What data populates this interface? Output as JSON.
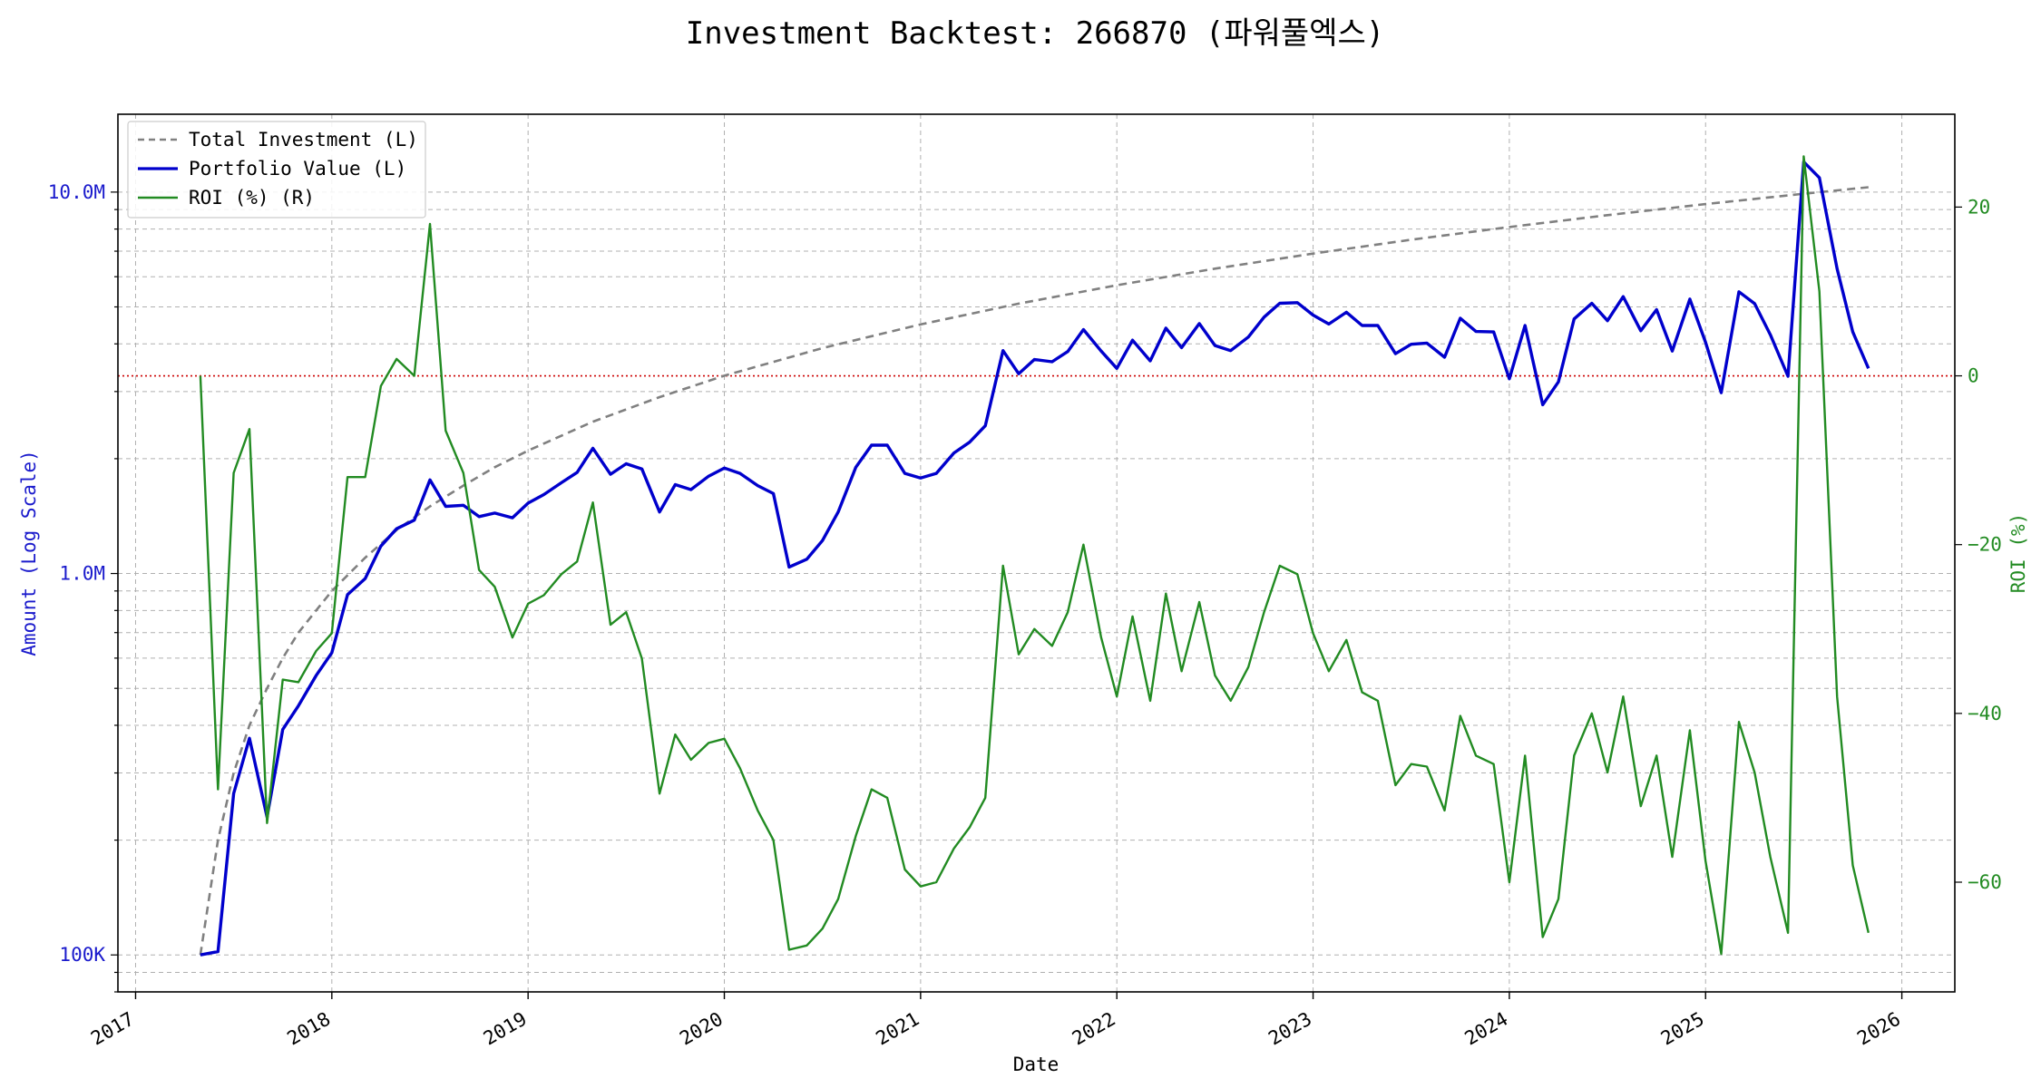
{
  "chart_data": {
    "type": "line",
    "title": "Investment Backtest: 266870 (파워풀엑스)",
    "xlabel": "Date",
    "ylabel_left": "Amount (Log Scale)",
    "ylabel_right": "ROI (%)",
    "x_range": [
      2016.91,
      2026.27
    ],
    "ylim_left": [
      80000,
      16000000
    ],
    "ylim_right": [
      -73,
      31
    ],
    "left_scale": "log",
    "grid": true,
    "legend_position": "top-left",
    "x_ticks": [
      {
        "value": 2017,
        "label": "2017"
      },
      {
        "value": 2018,
        "label": "2018"
      },
      {
        "value": 2019,
        "label": "2019"
      },
      {
        "value": 2020,
        "label": "2020"
      },
      {
        "value": 2021,
        "label": "2021"
      },
      {
        "value": 2022,
        "label": "2022"
      },
      {
        "value": 2023,
        "label": "2023"
      },
      {
        "value": 2024,
        "label": "2024"
      },
      {
        "value": 2025,
        "label": "2025"
      },
      {
        "value": 2026,
        "label": "2026"
      }
    ],
    "left_ticks": [
      {
        "value": 100000,
        "label": "100K"
      },
      {
        "value": 1000000,
        "label": "1.0M"
      },
      {
        "value": 10000000,
        "label": "10.0M"
      }
    ],
    "right_ticks": [
      {
        "value": -60,
        "label": "−60"
      },
      {
        "value": -40,
        "label": "−40"
      },
      {
        "value": -20,
        "label": "−20"
      },
      {
        "value": 0,
        "label": "0"
      },
      {
        "value": 20,
        "label": "20"
      }
    ],
    "reference_line": {
      "axis": "right",
      "value": 0,
      "color": "#cc0000"
    },
    "series": [
      {
        "name": "Total Investment (L)",
        "axis": "left",
        "color": "#808080",
        "style": "dashed",
        "x": [
          2017.33,
          2017.42,
          2017.5,
          2017.58,
          2017.67,
          2017.75,
          2017.83,
          2017.92,
          2018.0,
          2018.17,
          2018.33,
          2018.5,
          2018.67,
          2018.83,
          2019.0,
          2019.33,
          2019.67,
          2020.0,
          2020.5,
          2021.0,
          2021.5,
          2022.0,
          2022.5,
          2023.0,
          2023.5,
          2024.0,
          2024.5,
          2025.0,
          2025.5,
          2025.83
        ],
        "values": [
          100000,
          200000,
          300000,
          400000,
          500000,
          600000,
          700000,
          800000,
          900000,
          1100000,
          1300000,
          1500000,
          1700000,
          1900000,
          2100000,
          2500000,
          2900000,
          3300000,
          3900000,
          4500000,
          5100000,
          5700000,
          6300000,
          6900000,
          7500000,
          8100000,
          8700000,
          9300000,
          9900000,
          10300000
        ]
      },
      {
        "name": "Portfolio Value (L)",
        "axis": "left",
        "color": "#0000cc",
        "style": "solid",
        "x": [
          2017.33,
          2017.42,
          2017.5,
          2017.58,
          2017.67,
          2017.75,
          2017.83,
          2017.92,
          2018.0,
          2018.08,
          2018.17,
          2018.25,
          2018.33,
          2018.42,
          2018.5,
          2018.58,
          2018.67,
          2018.75,
          2018.83,
          2018.92,
          2019.0,
          2019.08,
          2019.17,
          2019.25,
          2019.33,
          2019.42,
          2019.5,
          2019.58,
          2019.67,
          2019.75,
          2019.83,
          2019.92,
          2020.0,
          2020.08,
          2020.17,
          2020.25,
          2020.33,
          2020.42,
          2020.5,
          2020.58,
          2020.67,
          2020.75,
          2020.83,
          2020.92,
          2021.0,
          2021.08,
          2021.17,
          2021.25,
          2021.33,
          2021.42,
          2021.5,
          2021.58,
          2021.67,
          2021.75,
          2021.83,
          2021.92,
          2022.0,
          2022.08,
          2022.17,
          2022.25,
          2022.33,
          2022.42,
          2022.5,
          2022.58,
          2022.67,
          2022.75,
          2022.83,
          2022.92,
          2023.0,
          2023.08,
          2023.17,
          2023.25,
          2023.33,
          2023.42,
          2023.5,
          2023.58,
          2023.67,
          2023.75,
          2023.83,
          2023.92,
          2024.0,
          2024.08,
          2024.17,
          2024.25,
          2024.33,
          2024.42,
          2024.5,
          2024.58,
          2024.67,
          2024.75,
          2024.83,
          2024.92,
          2025.0,
          2025.08,
          2025.17,
          2025.25,
          2025.33,
          2025.42,
          2025.5,
          2025.58,
          2025.67,
          2025.75,
          2025.83
        ],
        "values": [
          100000,
          102000,
          265000,
          370000,
          230000,
          390000,
          450000,
          540000,
          620000,
          880000,
          970000,
          1180000,
          1310000,
          1380000,
          1760000,
          1500000,
          1510000,
          1410000,
          1440000,
          1400000,
          1530000,
          1610000,
          1730000,
          1840000,
          2130000,
          1820000,
          1940000,
          1880000,
          1450000,
          1710000,
          1660000,
          1800000,
          1890000,
          1830000,
          1700000,
          1620000,
          1040000,
          1090000,
          1220000,
          1450000,
          1900000,
          2170000,
          2170000,
          1830000,
          1780000,
          1830000,
          2070000,
          2210000,
          2440000,
          3840000,
          3340000,
          3640000,
          3590000,
          3820000,
          4360000,
          3830000,
          3450000,
          4090000,
          3610000,
          4400000,
          3910000,
          4520000,
          3960000,
          3840000,
          4170000,
          4700000,
          5110000,
          5130000,
          4760000,
          4510000,
          4840000,
          4470000,
          4470000,
          3770000,
          3990000,
          4020000,
          3690000,
          4670000,
          4310000,
          4300000,
          3240000,
          4470000,
          2770000,
          3180000,
          4650000,
          5110000,
          4600000,
          5320000,
          4330000,
          4920000,
          3830000,
          5240000,
          4040000,
          2980000,
          5480000,
          5100000,
          4230000,
          3290000,
          12000000,
          10900000,
          6300000,
          4300000,
          3450000
        ]
      },
      {
        "name": "ROI (%) (R)",
        "axis": "right",
        "color": "#228b22",
        "style": "solid",
        "x": [
          2017.33,
          2017.42,
          2017.5,
          2017.58,
          2017.67,
          2017.75,
          2017.83,
          2017.92,
          2018.0,
          2018.08,
          2018.17,
          2018.25,
          2018.33,
          2018.42,
          2018.5,
          2018.58,
          2018.67,
          2018.75,
          2018.83,
          2018.92,
          2019.0,
          2019.08,
          2019.17,
          2019.25,
          2019.33,
          2019.42,
          2019.5,
          2019.58,
          2019.67,
          2019.75,
          2019.83,
          2019.92,
          2020.0,
          2020.08,
          2020.17,
          2020.25,
          2020.33,
          2020.42,
          2020.5,
          2020.58,
          2020.67,
          2020.75,
          2020.83,
          2020.92,
          2021.0,
          2021.08,
          2021.17,
          2021.25,
          2021.33,
          2021.42,
          2021.5,
          2021.58,
          2021.67,
          2021.75,
          2021.83,
          2021.92,
          2022.0,
          2022.08,
          2022.17,
          2022.25,
          2022.33,
          2022.42,
          2022.5,
          2022.58,
          2022.67,
          2022.75,
          2022.83,
          2022.92,
          2023.0,
          2023.08,
          2023.17,
          2023.25,
          2023.33,
          2023.42,
          2023.5,
          2023.58,
          2023.67,
          2023.75,
          2023.83,
          2023.92,
          2024.0,
          2024.08,
          2024.17,
          2024.25,
          2024.33,
          2024.42,
          2024.5,
          2024.58,
          2024.67,
          2024.75,
          2024.83,
          2024.92,
          2025.0,
          2025.08,
          2025.17,
          2025.25,
          2025.33,
          2025.42,
          2025.5,
          2025.58,
          2025.67,
          2025.75,
          2025.83
        ],
        "values": [
          0,
          -49,
          -11.5,
          -6.3,
          -53,
          -36,
          -36.3,
          -32.6,
          -30.5,
          -12,
          -12,
          -1.2,
          2,
          0,
          18,
          -6.5,
          -11.5,
          -23,
          -25,
          -31,
          -27,
          -26,
          -23.5,
          -22,
          -15,
          -29.5,
          -28,
          -33.5,
          -49.5,
          -42.5,
          -45.5,
          -43.5,
          -43,
          -46.5,
          -51.5,
          -55,
          -68,
          -67.5,
          -65.5,
          -62,
          -54.5,
          -49,
          -50,
          -58.5,
          -60.5,
          -60,
          -56,
          -53.5,
          -50,
          -22.5,
          -33,
          -30,
          -32,
          -28,
          -20,
          -31,
          -38,
          -28.5,
          -38.5,
          -25.8,
          -35,
          -26.8,
          -35.5,
          -38.5,
          -34.5,
          -28,
          -22.5,
          -23.5,
          -30.5,
          -35,
          -31.3,
          -37.5,
          -38.5,
          -48.5,
          -46,
          -46.3,
          -51.5,
          -40.3,
          -45,
          -46,
          -60,
          -45,
          -66.5,
          -62,
          -45,
          -40,
          -47,
          -38,
          -51,
          -45,
          -57,
          -42,
          -57.5,
          -68.5,
          -41,
          -47,
          -57,
          -66,
          26,
          10,
          -38,
          -58,
          -66
        ]
      }
    ]
  }
}
